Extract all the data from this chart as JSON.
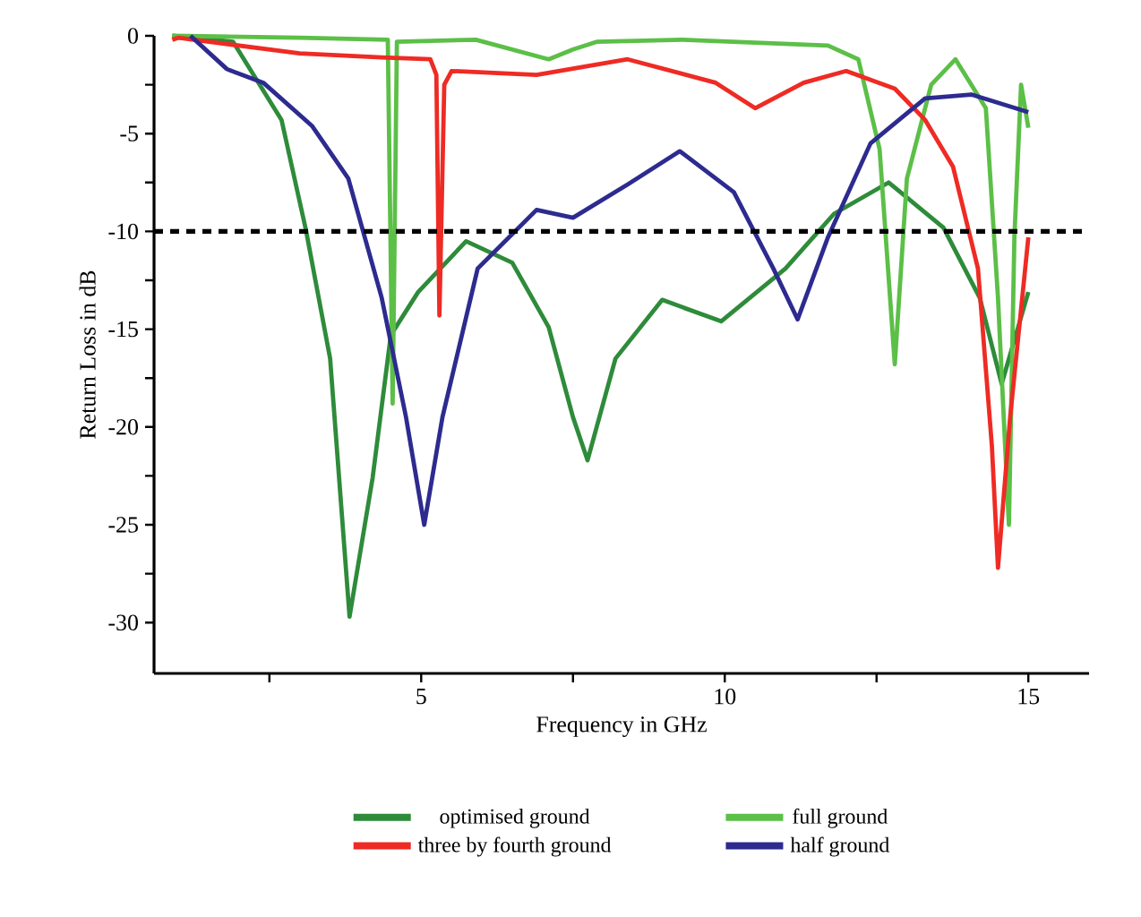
{
  "chart_data": {
    "type": "line",
    "xlabel": "Frequency in GHz",
    "ylabel": "Return Loss in dB",
    "xlim": [
      0.6,
      16.0
    ],
    "ylim": [
      -32.6,
      0
    ],
    "xticks": [
      {
        "value": 2.5,
        "label": null
      },
      5,
      {
        "value": 7.5,
        "label": null
      },
      10,
      {
        "value": 12.5,
        "label": null
      },
      15
    ],
    "yticks": [
      -30,
      {
        "value": -27.5,
        "label": null
      },
      -25,
      {
        "value": -22.5,
        "label": null
      },
      -20,
      {
        "value": -17.5,
        "label": null
      },
      -15,
      {
        "value": -12.5,
        "label": null
      },
      -10,
      {
        "value": -7.5,
        "label": null
      },
      -5,
      {
        "value": -2.5,
        "label": null
      },
      0
    ],
    "grid": false,
    "legend": "bottom",
    "line_style": "solid",
    "marker": "none",
    "ref_lines": [
      {
        "axis": "y",
        "value": -10,
        "color": "#000000",
        "line_style": "dashed"
      }
    ],
    "series": [
      {
        "name": "optimised ground",
        "color": "#2e8b3a",
        "x": [
          0.9,
          1.9,
          2.7,
          3.1,
          3.5,
          3.82,
          4.2,
          4.5,
          4.95,
          5.74,
          6.5,
          7.1,
          7.5,
          7.74,
          8.2,
          8.97,
          9.94,
          11.0,
          11.8,
          12.7,
          13.6,
          14.2,
          14.56,
          15.0
        ],
        "values": [
          0,
          -0.3,
          -4.3,
          -9.9,
          -16.5,
          -29.7,
          -22.6,
          -15.3,
          -13.1,
          -10.5,
          -11.6,
          -14.9,
          -19.5,
          -21.7,
          -16.5,
          -13.5,
          -14.6,
          -11.9,
          -9.1,
          -7.5,
          -9.8,
          -13.4,
          -17.8,
          -13.1
        ]
      },
      {
        "name": "full ground",
        "color": "#5cbf47",
        "x": [
          0.9,
          3.0,
          4.45,
          4.53,
          4.6,
          5.9,
          7.1,
          7.5,
          7.9,
          9.3,
          11.7,
          12.2,
          12.55,
          12.8,
          13.0,
          13.4,
          13.8,
          14.3,
          14.5,
          14.68,
          14.77,
          14.88,
          15.0
        ],
        "values": [
          0,
          -0.1,
          -0.2,
          -18.8,
          -0.3,
          -0.2,
          -1.2,
          -0.7,
          -0.3,
          -0.2,
          -0.5,
          -1.2,
          -5.8,
          -16.8,
          -7.3,
          -2.5,
          -1.2,
          -3.7,
          -13.4,
          -25,
          -10.3,
          -2.5,
          -4.7
        ]
      },
      {
        "name": "three by fourth ground",
        "color": "#ee2b24",
        "x": [
          0.9,
          1.0,
          3.0,
          4.35,
          5.15,
          5.25,
          5.3,
          5.38,
          5.5,
          6.9,
          8.4,
          9.85,
          10.5,
          11.3,
          12.0,
          12.8,
          13.3,
          13.76,
          14.17,
          14.4,
          14.5,
          14.7,
          15.0
        ],
        "values": [
          -0.2,
          -0.1,
          -0.9,
          -1.1,
          -1.2,
          -2,
          -14.3,
          -2.5,
          -1.8,
          -2,
          -1.2,
          -2.4,
          -3.7,
          -2.4,
          -1.8,
          -2.7,
          -4.3,
          -6.7,
          -11.9,
          -21,
          -27.2,
          -19.5,
          -10.3
        ]
      },
      {
        "name": "half ground",
        "color": "#2d2b8f",
        "x": [
          1.2,
          1.8,
          2.4,
          3.2,
          3.8,
          4.35,
          4.75,
          5.05,
          5.35,
          5.93,
          6.9,
          7.5,
          8.4,
          9.26,
          10.15,
          10.8,
          11.2,
          11.7,
          12.4,
          13.3,
          14.06,
          15.0
        ],
        "values": [
          0,
          -1.7,
          -2.4,
          -4.6,
          -7.3,
          -13.4,
          -19.5,
          -25,
          -19.5,
          -11.9,
          -8.9,
          -9.3,
          -7.6,
          -5.9,
          -8,
          -11.9,
          -14.5,
          -10.3,
          -5.5,
          -3.2,
          -3.0,
          -3.9
        ]
      }
    ]
  }
}
